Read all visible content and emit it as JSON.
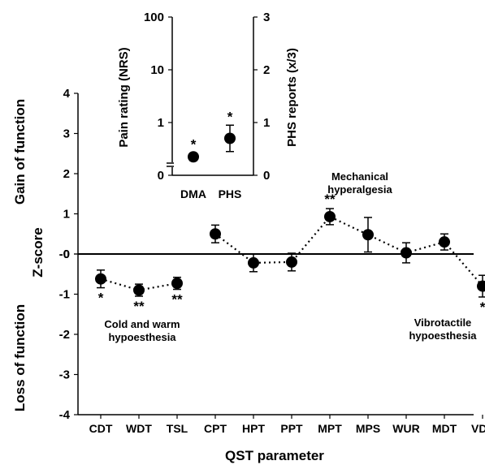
{
  "chart_data": [
    {
      "type": "scatter",
      "title": "",
      "xlabel": "QST parameter",
      "ylabel": "Z-score",
      "ylim": [
        -4,
        4
      ],
      "yticks": [
        "4",
        "3",
        "2",
        "1",
        "0",
        "-0",
        "-1",
        "-2",
        "-3",
        "-4"
      ],
      "side_labels": {
        "gain": "Gain of function",
        "loss": "Loss of function"
      },
      "categories": [
        "CDT",
        "WDT",
        "TSL",
        "CPT",
        "HPT",
        "PPT",
        "MPT",
        "MPS",
        "WUR",
        "MDT",
        "VDT"
      ],
      "values": [
        -0.62,
        -0.9,
        -0.73,
        0.5,
        -0.22,
        -0.2,
        0.93,
        0.48,
        0.03,
        0.3,
        -0.8
      ],
      "errors": [
        0.22,
        0.15,
        0.15,
        0.22,
        0.22,
        0.22,
        0.2,
        0.43,
        0.25,
        0.2,
        0.27
      ],
      "significance": [
        "*",
        "**",
        "**",
        "",
        "",
        "",
        "**",
        "",
        "",
        "",
        "*"
      ],
      "dotted_segments": [
        [
          0,
          2
        ],
        [
          3,
          10
        ]
      ],
      "zero_line": true,
      "annotations": {
        "cold_warm": [
          "Cold and warm",
          "hypoesthesia"
        ],
        "mech": [
          "Mechanical",
          "hyperalgesia"
        ],
        "vibro": [
          "Vibrotactile",
          "hypoesthesia"
        ]
      }
    },
    {
      "type": "scatter",
      "title": "",
      "categories": [
        "DMA",
        "PHS"
      ],
      "left_axis": {
        "label": "Pain rating (NRS)",
        "scale": "log",
        "ticks": [
          "100",
          "10",
          "1",
          "0"
        ]
      },
      "right_axis": {
        "label": "PHS reports (x/3)",
        "ticks": [
          "3",
          "2",
          "1",
          "0"
        ],
        "ylim": [
          0,
          3
        ]
      },
      "values": [
        0.35,
        0.7
      ],
      "errors": [
        0.07,
        0.25
      ],
      "significance": [
        "*",
        "*"
      ]
    }
  ]
}
